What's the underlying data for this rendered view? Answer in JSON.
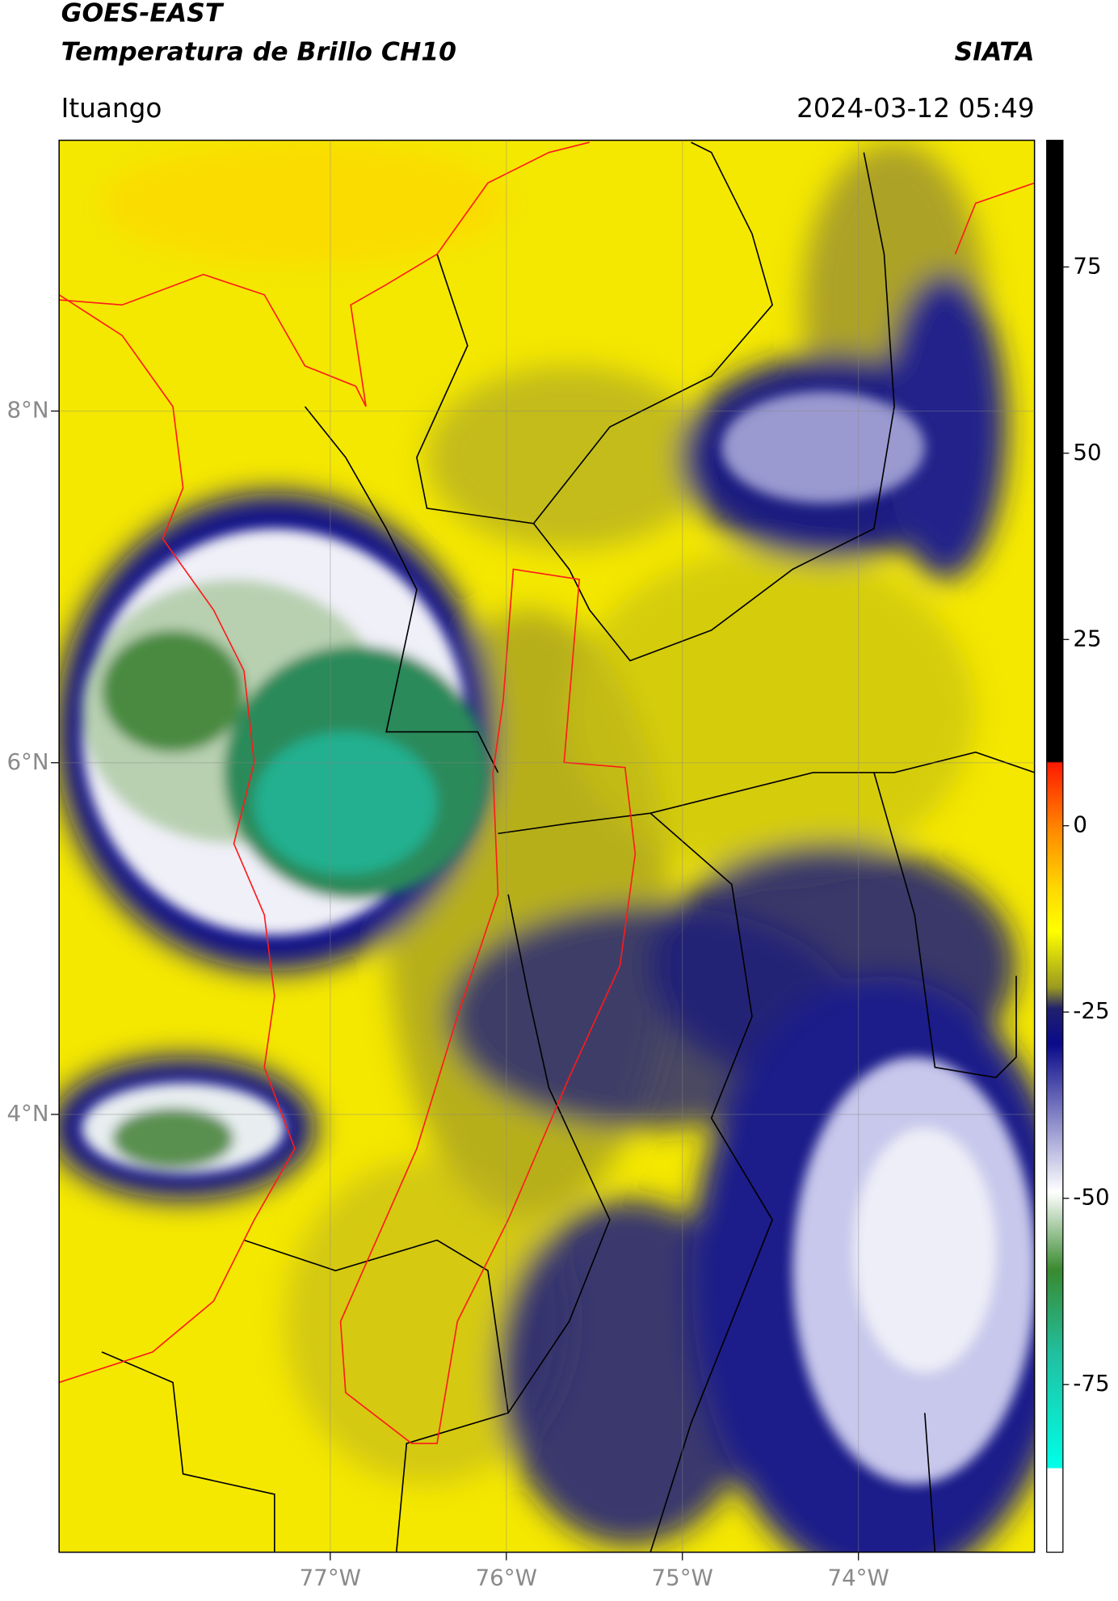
{
  "header": {
    "satellite": "GOES-EAST",
    "product": "Temperatura de Brillo CH10",
    "brand": "SIATA",
    "location": "Ituango",
    "datetime": "2024-03-12 05:49"
  },
  "chart_data": {
    "type": "map",
    "xlim": [
      -78.54,
      -73.0
    ],
    "ylim": [
      1.51,
      9.54
    ],
    "xticks": [
      {
        "value": -77,
        "label": "77°W"
      },
      {
        "value": -76,
        "label": "76°W"
      },
      {
        "value": -75,
        "label": "75°W"
      },
      {
        "value": -74,
        "label": "74°W"
      }
    ],
    "yticks": [
      {
        "value": 8,
        "label": "8°N"
      },
      {
        "value": 6,
        "label": "6°N"
      },
      {
        "value": 4,
        "label": "4°N"
      }
    ],
    "grid": true,
    "colorbar": {
      "lim": [
        -97.5,
        92
      ],
      "ticks": [
        75,
        50,
        25,
        0,
        -25,
        -50,
        -75
      ]
    }
  }
}
